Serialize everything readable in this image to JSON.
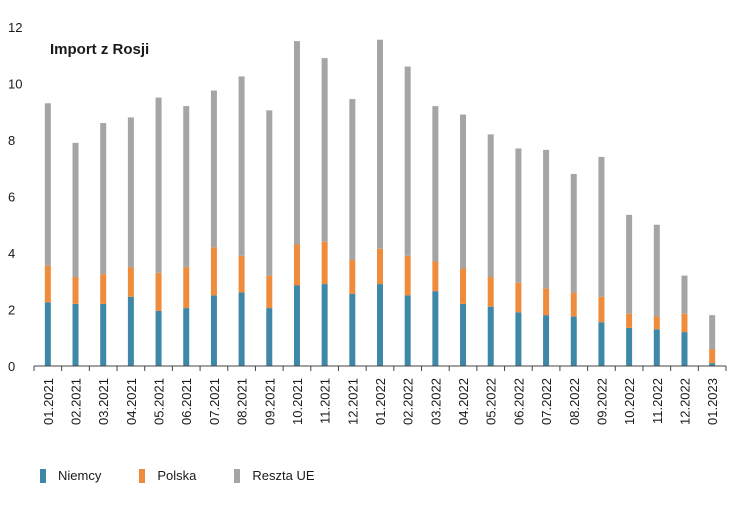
{
  "chart_data": {
    "type": "bar",
    "stacked": true,
    "title": "Import z Rosji",
    "xlabel": "",
    "ylabel": "",
    "ylim": [
      0,
      12
    ],
    "yticks": [
      "0",
      "2",
      "4",
      "6",
      "8",
      "10",
      "12"
    ],
    "grid": false,
    "legend_position": "bottom-left",
    "categories": [
      "01.2021",
      "02.2021",
      "03.2021",
      "04.2021",
      "05.2021",
      "06.2021",
      "07.2021",
      "08.2021",
      "09.2021",
      "10.2021",
      "11.2021",
      "12.2021",
      "01.2022",
      "02.2022",
      "03.2022",
      "04.2022",
      "05.2022",
      "06.2022",
      "07.2022",
      "08.2022",
      "09.2022",
      "10.2022",
      "11.2022",
      "12.2022",
      "01.2023"
    ],
    "series": [
      {
        "name": "Niemcy",
        "color": "#3e87a6",
        "values": [
          2.25,
          2.2,
          2.2,
          2.45,
          1.95,
          2.05,
          2.5,
          2.6,
          2.05,
          2.85,
          2.9,
          2.55,
          2.9,
          2.5,
          2.65,
          2.2,
          2.1,
          1.9,
          1.8,
          1.75,
          1.55,
          1.35,
          1.3,
          1.2,
          0.1
        ]
      },
      {
        "name": "Polska",
        "color": "#ef8c3c",
        "values": [
          1.3,
          0.95,
          1.05,
          1.05,
          1.35,
          1.45,
          1.7,
          1.3,
          1.15,
          1.45,
          1.5,
          1.2,
          1.25,
          1.4,
          1.05,
          1.25,
          1.05,
          1.05,
          0.95,
          0.85,
          0.9,
          0.5,
          0.45,
          0.65,
          0.5
        ]
      },
      {
        "name": "Reszta UE",
        "color": "#a5a5a5",
        "values": [
          5.75,
          4.75,
          5.35,
          5.3,
          6.2,
          5.7,
          5.55,
          6.35,
          5.85,
          7.2,
          6.5,
          5.7,
          7.4,
          6.7,
          5.5,
          5.45,
          5.05,
          4.75,
          4.9,
          4.2,
          4.95,
          3.5,
          3.25,
          1.35,
          1.2
        ]
      }
    ]
  }
}
